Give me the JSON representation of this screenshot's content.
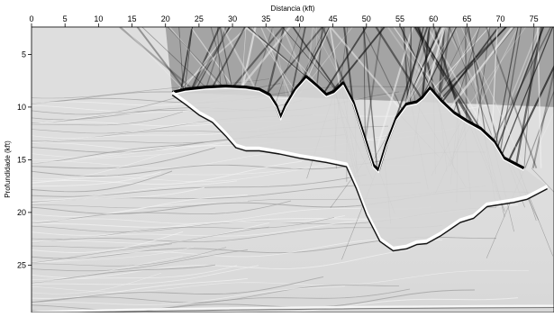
{
  "chart_data": {
    "type": "heatmap",
    "title": "",
    "xlabel": "Distancia (kft)",
    "ylabel": "Profundidade (kft)",
    "x_axis_position": "top",
    "xlim": [
      0,
      78
    ],
    "ylim": [
      2.4,
      29.5
    ],
    "y_inverted": true,
    "grid": false,
    "legend": "none",
    "colormap": "grayscale",
    "x_ticks": [
      0,
      5,
      10,
      15,
      20,
      25,
      30,
      35,
      40,
      45,
      50,
      55,
      60,
      65,
      70,
      75
    ],
    "x_tick_labels": [
      "0",
      "5",
      "10",
      "15",
      "20",
      "25",
      "30",
      "35",
      "40",
      "45",
      "50",
      "55",
      "60",
      "65",
      "70",
      "75"
    ],
    "y_ticks": [
      5,
      10,
      15,
      20,
      25
    ],
    "y_tick_labels": [
      "5",
      "10",
      "15",
      "20",
      "25"
    ],
    "features": {
      "salt_top": {
        "x": [
          21,
          23,
          26,
          29,
          32,
          34,
          35.5,
          36.5,
          37.2,
          38,
          39.5,
          41,
          42.5,
          44,
          45.2,
          46.5,
          48,
          49.5,
          51,
          51.8,
          53,
          54.5,
          56,
          57.5,
          58.5,
          59.5,
          61,
          63,
          65,
          67,
          69,
          70.5,
          72,
          73.5
        ],
        "y": [
          8.6,
          8.3,
          8.1,
          8.0,
          8.1,
          8.3,
          8.8,
          9.8,
          11.0,
          9.8,
          8.2,
          7.1,
          7.9,
          8.8,
          8.5,
          7.7,
          9.5,
          12.5,
          15.5,
          16.0,
          13.5,
          11.0,
          9.7,
          9.5,
          9.0,
          8.2,
          9.3,
          10.5,
          11.3,
          12.0,
          13.2,
          14.8,
          15.3,
          15.8
        ]
      },
      "salt_base": {
        "x": [
          21,
          23,
          25,
          27,
          29,
          30.5,
          32,
          34,
          37,
          40,
          44,
          47,
          48.5,
          50,
          52,
          54,
          56,
          57.5,
          59,
          61,
          64,
          66,
          68,
          70,
          72,
          74,
          75.5,
          77
        ],
        "y": [
          8.6,
          9.5,
          10.5,
          11.2,
          12.5,
          13.6,
          13.9,
          13.9,
          14.2,
          14.6,
          15.0,
          15.4,
          17.5,
          20.0,
          22.5,
          23.4,
          23.2,
          22.8,
          22.7,
          22.0,
          20.7,
          20.3,
          19.2,
          19.0,
          18.8,
          18.5,
          18.0,
          17.5
        ]
      },
      "seafloor_depth": 29.2
    }
  }
}
